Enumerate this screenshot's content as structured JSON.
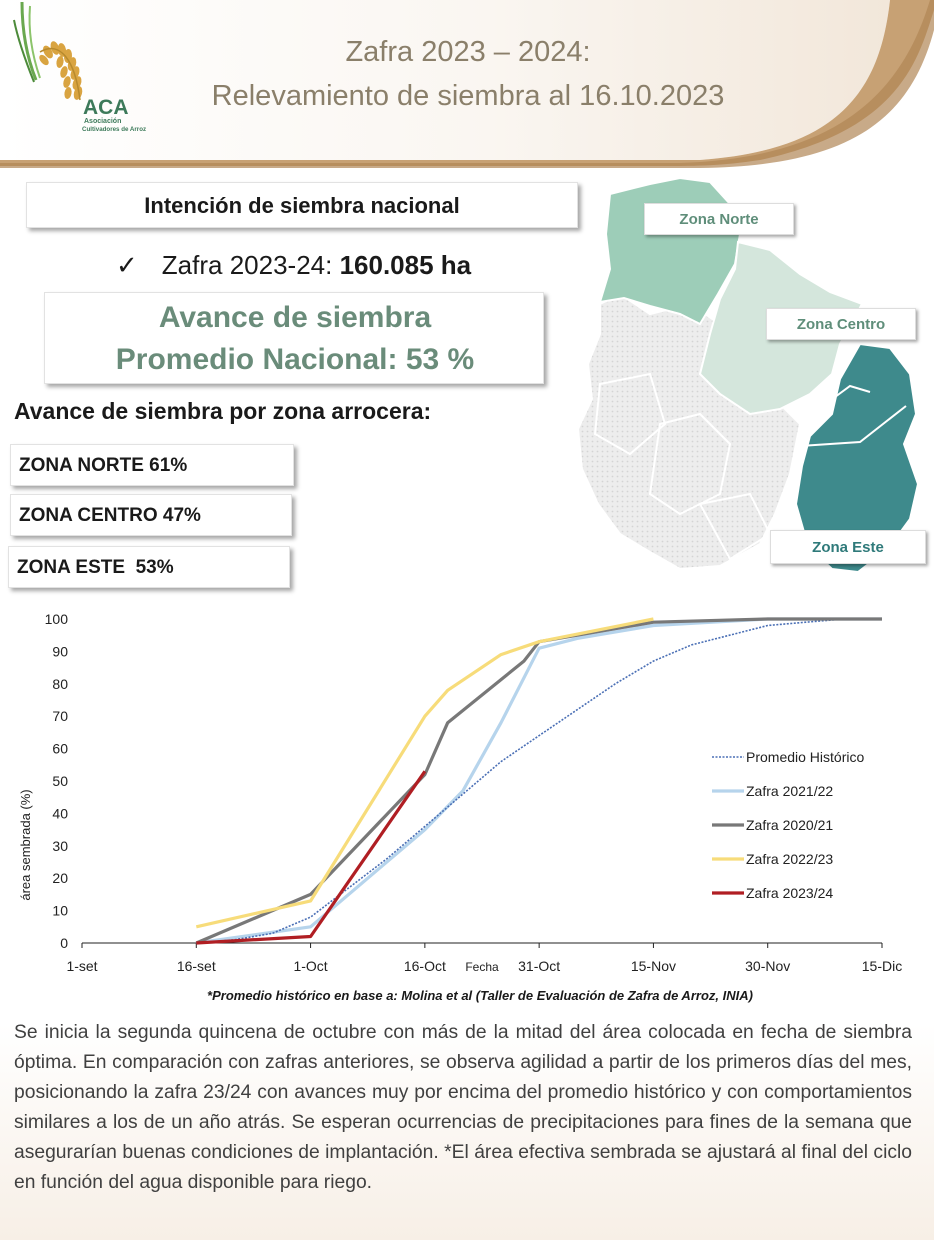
{
  "header": {
    "title_line1": "Zafra 2023 – 2024:",
    "title_line2": "Relevamiento de siembra al 16.10.2023",
    "logo": {
      "acronym": "ACA",
      "sub1": "Asociación",
      "sub2": "Cultivadores de Arroz"
    }
  },
  "intencion": {
    "heading": "Intención de siembra nacional",
    "check": "✓",
    "zafra_label": "Zafra 2023-24: ",
    "zafra_value": "160.085 ha"
  },
  "avance": {
    "line1": "Avance de siembra",
    "line2": "Promedio Nacional:  53 %"
  },
  "zonas": {
    "heading": "Avance de siembra por zona arrocera:",
    "norte": "ZONA NORTE 61%",
    "centro": "ZONA CENTRO 47%",
    "este": "ZONA ESTE  53%"
  },
  "map": {
    "label_norte": "Zona Norte",
    "label_centro": "Zona Centro",
    "label_este": "Zona Este",
    "colors": {
      "norte": "#9dcdb8",
      "centro": "#d4e6dc",
      "este": "#3e8a8c",
      "rest": "#ececec"
    }
  },
  "chart_data": {
    "type": "line",
    "title": "",
    "xlabel": "Fecha",
    "ylabel": "área sembrada (%)",
    "ylim": [
      0,
      100
    ],
    "yticks": [
      "0",
      "10",
      "20",
      "30",
      "40",
      "50",
      "60",
      "70",
      "80",
      "90",
      "100"
    ],
    "xticks": [
      "1-set",
      "16-set",
      "1-Oct",
      "16-Oct",
      "31-Oct",
      "15-Nov",
      "30-Nov",
      "15-Dic"
    ],
    "legend_position": "right",
    "series": [
      {
        "name": "Promedio Histórico",
        "color": "#4a6fb5",
        "dashed": true,
        "x": [
          "16-set",
          "21-set",
          "26-set",
          "1-Oct",
          "6-Oct",
          "11-Oct",
          "16-Oct",
          "21-Oct",
          "26-Oct",
          "31-Oct",
          "5-Nov",
          "10-Nov",
          "15-Nov",
          "20-Nov",
          "25-Nov",
          "30-Nov",
          "5-Dic",
          "10-Dic",
          "15-Dic"
        ],
        "values": [
          0,
          1,
          3,
          8,
          17,
          26,
          36,
          46,
          56,
          64,
          72,
          80,
          87,
          92,
          95,
          98,
          99,
          100,
          100
        ]
      },
      {
        "name": "Zafra 2021/22",
        "color": "#b6d4ec",
        "dashed": false,
        "x": [
          "16-set",
          "1-Oct",
          "16-Oct",
          "21-Oct",
          "26-Oct",
          "31-Oct",
          "5-Nov",
          "15-Nov",
          "30-Nov",
          "15-Dic"
        ],
        "values": [
          0,
          5,
          35,
          47,
          68,
          91,
          94,
          98,
          100,
          100
        ]
      },
      {
        "name": "Zafra 2020/21",
        "color": "#787878",
        "dashed": false,
        "x": [
          "16-set",
          "1-Oct",
          "16-Oct",
          "19-Oct",
          "29-Oct",
          "31-Oct",
          "15-Nov",
          "30-Nov",
          "15-Dic"
        ],
        "values": [
          0,
          15,
          52,
          68,
          87,
          93,
          99,
          100,
          100
        ]
      },
      {
        "name": "Zafra 2022/23",
        "color": "#f7dc7a",
        "dashed": false,
        "x": [
          "16-set",
          "1-Oct",
          "16-Oct",
          "19-Oct",
          "26-Oct",
          "31-Oct",
          "15-Nov"
        ],
        "values": [
          5,
          13,
          70,
          78,
          89,
          93,
          100
        ]
      },
      {
        "name": "Zafra 2023/24",
        "color": "#b01e23",
        "dashed": false,
        "x": [
          "16-set",
          "1-Oct",
          "16-Oct"
        ],
        "values": [
          0,
          2,
          53
        ]
      }
    ]
  },
  "footnote": "*Promedio histórico en base a: Molina et al (Taller de Evaluación de Zafra de Arroz, INIA)",
  "paragraph": "Se inicia la segunda quincena de octubre con más de la mitad del área colocada en fecha de siembra óptima. En comparación con zafras anteriores, se observa agilidad a partir de los primeros días del mes, posicionando la zafra 23/24 con avances muy por encima del promedio histórico y con comportamientos similares a los de un año atrás. Se esperan ocurrencias de precipitaciones para fines de la semana que asegurarían buenas condiciones de implantación. *El área efectiva sembrada se ajustará al final del ciclo en función del agua disponible para riego."
}
